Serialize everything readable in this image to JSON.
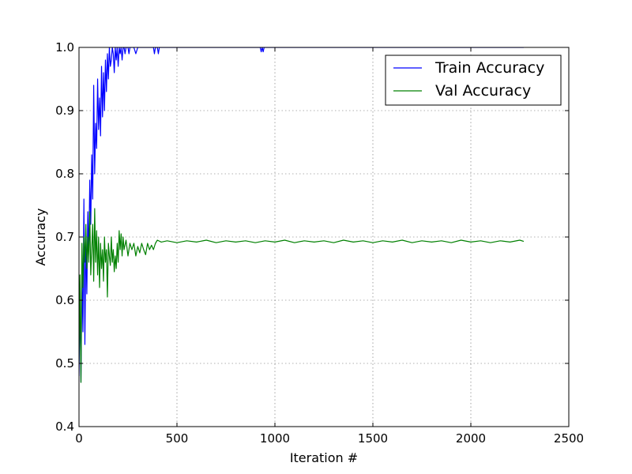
{
  "chart_data": {
    "type": "line",
    "title": "",
    "xlabel": "Iteration #",
    "ylabel": "Accuracy",
    "xlim": [
      0,
      2500
    ],
    "ylim": [
      0.4,
      1.0
    ],
    "xticks": [
      0,
      500,
      1000,
      1500,
      2000,
      2500
    ],
    "yticks": [
      0.4,
      0.5,
      0.6,
      0.7,
      0.8,
      0.9,
      1.0
    ],
    "xtick_labels": [
      "0",
      "500",
      "1000",
      "1500",
      "2000",
      "2500"
    ],
    "ytick_labels": [
      "0.4",
      "0.5",
      "0.6",
      "0.7",
      "0.8",
      "0.9",
      "1.0"
    ],
    "grid": true,
    "legend_position": "top-right",
    "series": [
      {
        "name": "Train Accuracy",
        "color": "#0000ff",
        "x": [
          0,
          5,
          10,
          15,
          20,
          25,
          30,
          35,
          40,
          45,
          50,
          55,
          60,
          65,
          70,
          75,
          80,
          85,
          90,
          95,
          100,
          105,
          110,
          115,
          120,
          125,
          130,
          135,
          140,
          145,
          150,
          155,
          160,
          165,
          170,
          175,
          180,
          185,
          190,
          195,
          200,
          205,
          210,
          215,
          220,
          225,
          230,
          235,
          240,
          245,
          250,
          255,
          260,
          270,
          280,
          290,
          300,
          310,
          320,
          330,
          340,
          350,
          360,
          370,
          380,
          385,
          390,
          395,
          400,
          405,
          410,
          420,
          430,
          440,
          450,
          460,
          470,
          480,
          490,
          500,
          600,
          700,
          800,
          900,
          925,
          930,
          935,
          940,
          945,
          950,
          1000,
          1500,
          2000,
          2270
        ],
        "y": [
          0.48,
          0.6,
          0.47,
          0.64,
          0.55,
          0.76,
          0.53,
          0.7,
          0.61,
          0.74,
          0.67,
          0.79,
          0.72,
          0.83,
          0.76,
          0.94,
          0.8,
          0.88,
          0.84,
          0.95,
          0.87,
          0.92,
          0.86,
          0.97,
          0.89,
          0.96,
          0.9,
          0.98,
          0.93,
          0.99,
          0.95,
          1.0,
          0.97,
          0.98,
          1.0,
          0.99,
          0.96,
          1.0,
          0.98,
          1.0,
          0.97,
          1.0,
          0.99,
          1.0,
          0.98,
          1.0,
          1.0,
          0.99,
          1.0,
          1.0,
          1.0,
          0.99,
          1.0,
          1.0,
          1.0,
          0.99,
          1.0,
          1.0,
          1.0,
          1.0,
          1.0,
          1.0,
          1.0,
          1.0,
          1.0,
          0.99,
          1.0,
          1.0,
          1.0,
          0.99,
          1.0,
          1.0,
          1.0,
          1.0,
          1.0,
          1.0,
          1.0,
          1.0,
          1.0,
          1.0,
          1.0,
          1.0,
          1.0,
          1.0,
          1.0,
          0.993,
          1.0,
          0.993,
          1.0,
          1.0,
          1.0,
          1.0,
          1.0,
          1.0
        ]
      },
      {
        "name": "Val Accuracy",
        "color": "#008000",
        "x": [
          0,
          5,
          10,
          15,
          20,
          25,
          30,
          35,
          40,
          45,
          50,
          55,
          60,
          65,
          70,
          75,
          80,
          85,
          90,
          95,
          100,
          105,
          110,
          115,
          120,
          125,
          130,
          135,
          140,
          145,
          150,
          155,
          160,
          165,
          170,
          175,
          180,
          185,
          190,
          195,
          200,
          205,
          210,
          215,
          220,
          225,
          230,
          240,
          250,
          260,
          270,
          280,
          290,
          300,
          310,
          320,
          330,
          340,
          350,
          360,
          370,
          380,
          390,
          400,
          420,
          450,
          500,
          550,
          600,
          650,
          700,
          750,
          800,
          850,
          900,
          950,
          1000,
          1050,
          1100,
          1150,
          1200,
          1250,
          1300,
          1350,
          1400,
          1450,
          1500,
          1550,
          1600,
          1650,
          1700,
          1750,
          1800,
          1850,
          1900,
          1950,
          2000,
          2050,
          2100,
          2150,
          2200,
          2250,
          2270
        ],
        "y": [
          0.5,
          0.64,
          0.47,
          0.69,
          0.62,
          0.7,
          0.66,
          0.72,
          0.65,
          0.7,
          0.66,
          0.74,
          0.64,
          0.68,
          0.72,
          0.63,
          0.745,
          0.66,
          0.71,
          0.64,
          0.7,
          0.62,
          0.69,
          0.65,
          0.68,
          0.63,
          0.7,
          0.66,
          0.68,
          0.605,
          0.69,
          0.67,
          0.655,
          0.7,
          0.66,
          0.68,
          0.645,
          0.67,
          0.65,
          0.69,
          0.66,
          0.71,
          0.68,
          0.705,
          0.67,
          0.7,
          0.68,
          0.695,
          0.67,
          0.69,
          0.68,
          0.69,
          0.67,
          0.685,
          0.675,
          0.69,
          0.68,
          0.672,
          0.69,
          0.68,
          0.687,
          0.68,
          0.69,
          0.695,
          0.692,
          0.694,
          0.691,
          0.694,
          0.692,
          0.695,
          0.691,
          0.694,
          0.692,
          0.694,
          0.691,
          0.694,
          0.692,
          0.695,
          0.691,
          0.694,
          0.692,
          0.694,
          0.691,
          0.695,
          0.692,
          0.694,
          0.691,
          0.694,
          0.692,
          0.695,
          0.691,
          0.694,
          0.692,
          0.694,
          0.691,
          0.695,
          0.692,
          0.694,
          0.691,
          0.694,
          0.692,
          0.695,
          0.693
        ]
      }
    ]
  }
}
